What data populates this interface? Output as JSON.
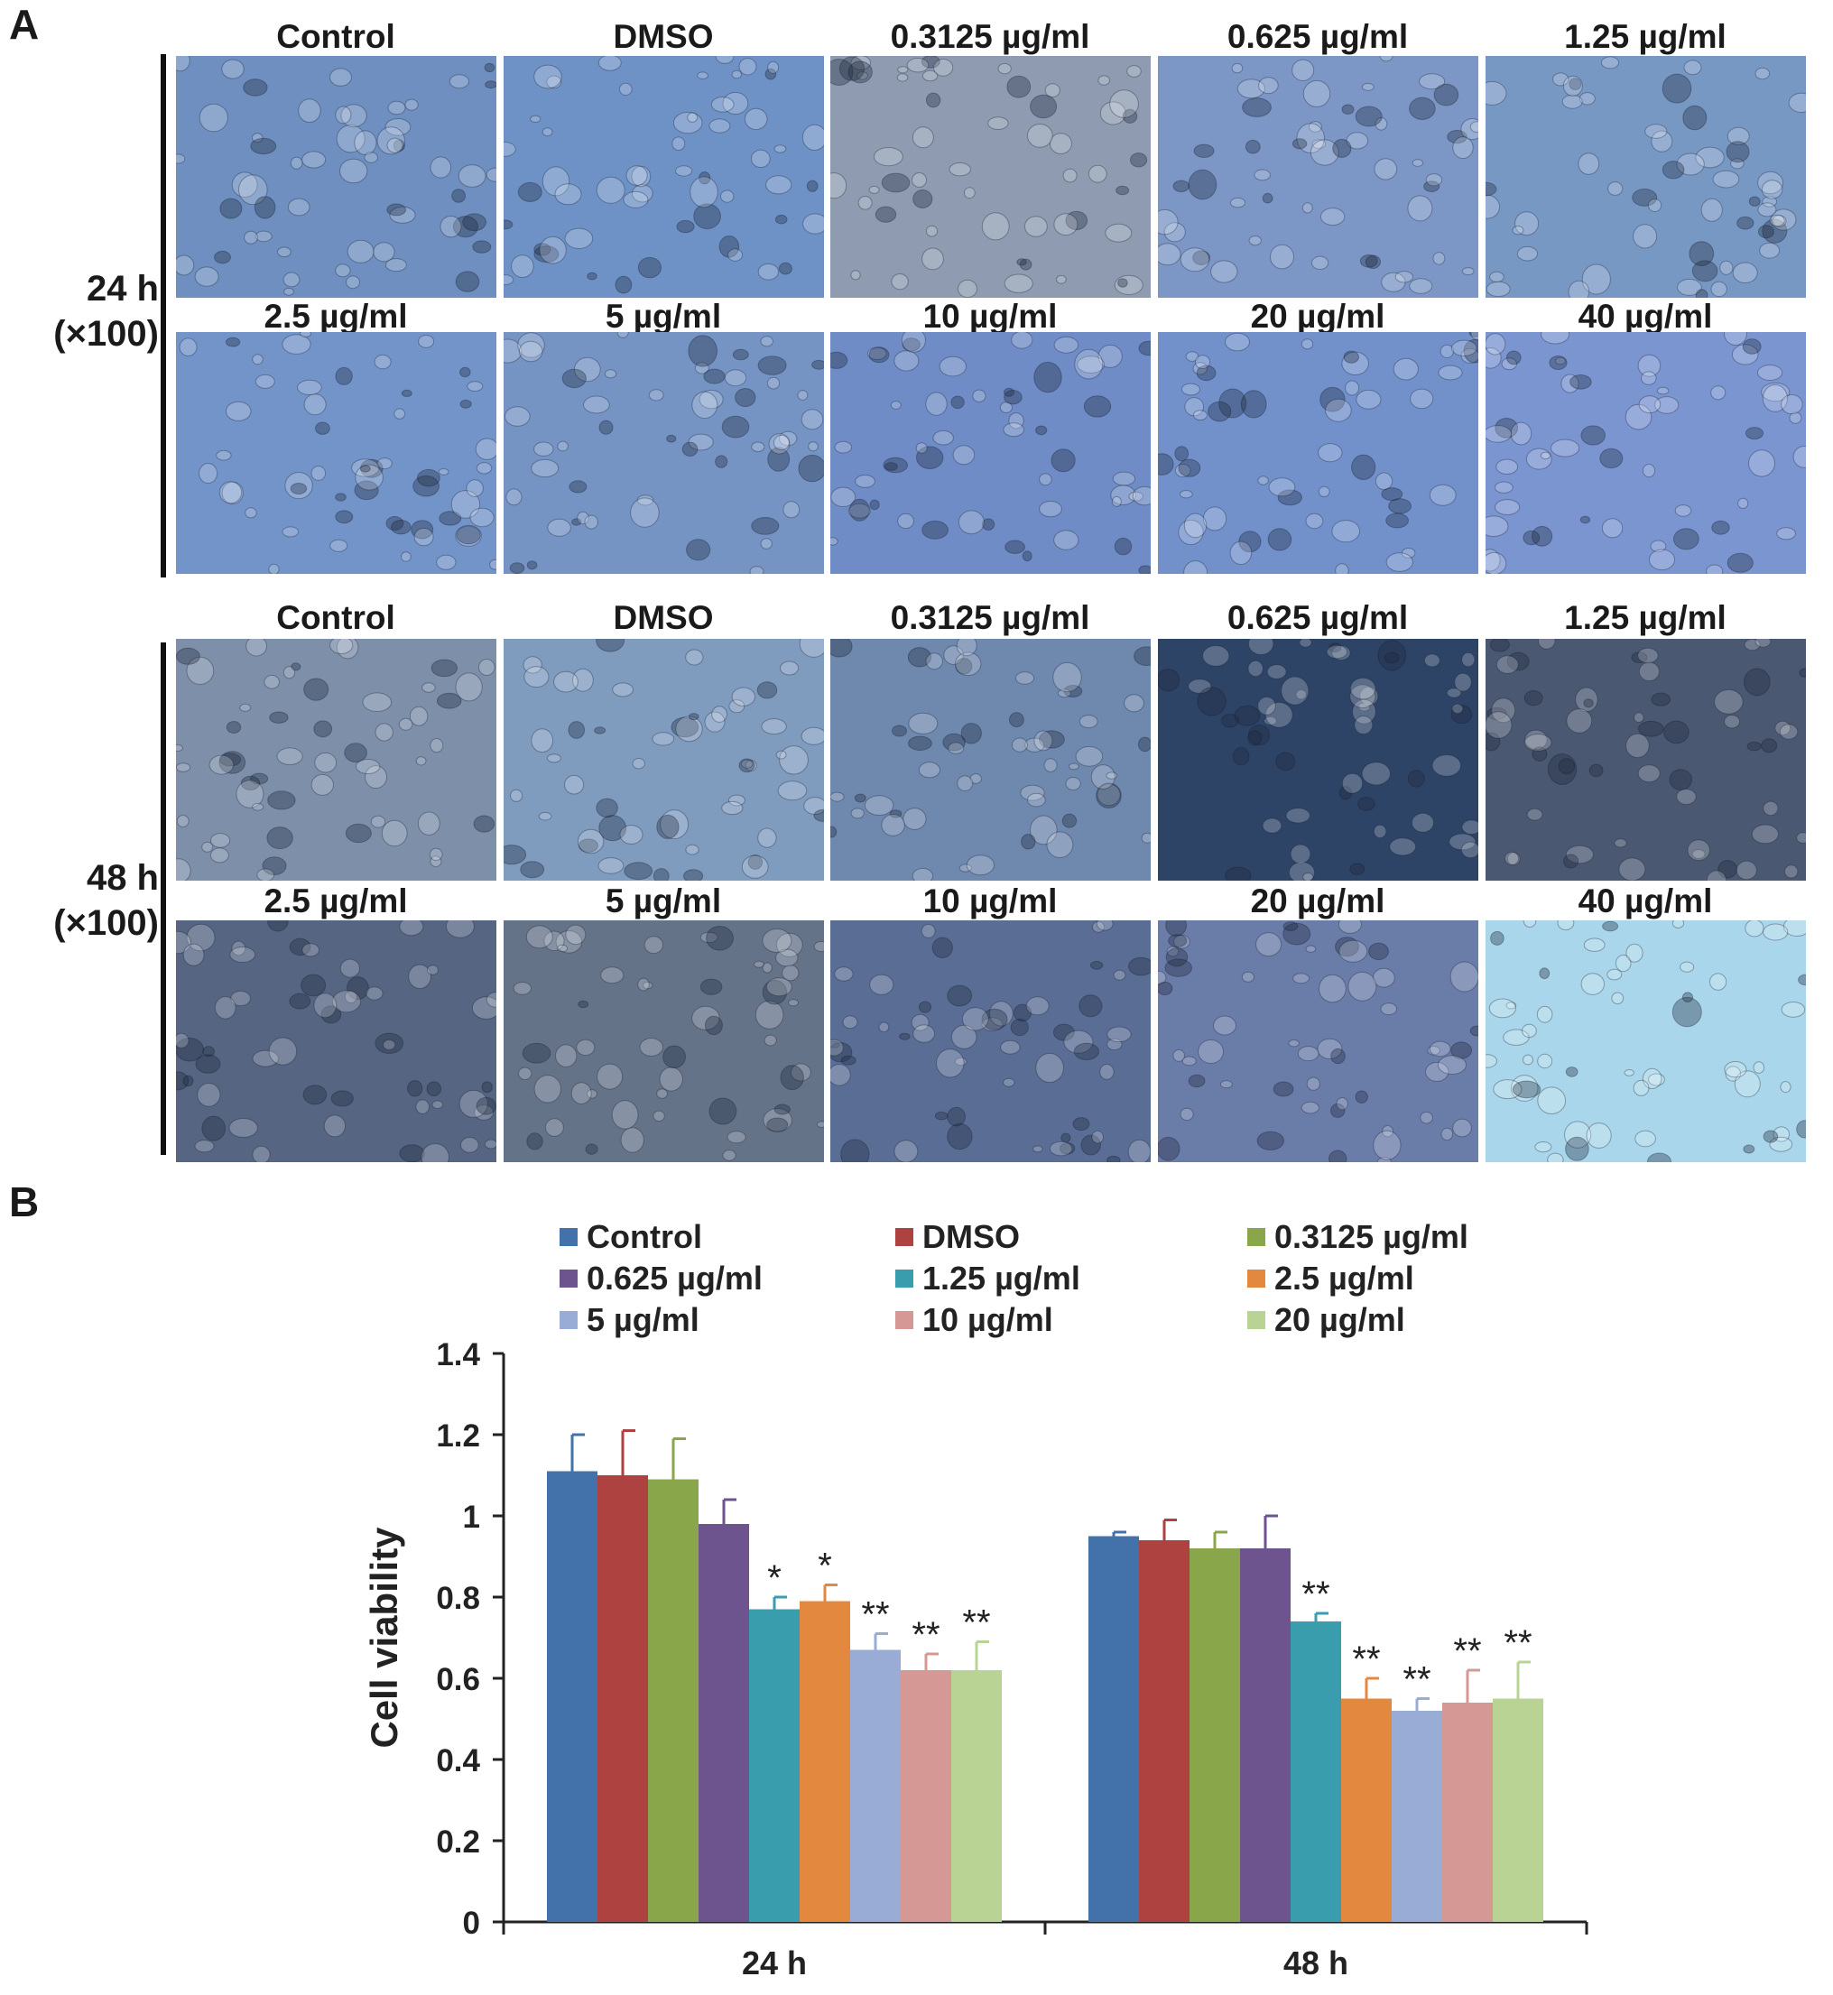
{
  "panels": {
    "a": "A",
    "b": "B"
  },
  "micrographs": {
    "groups": [
      {
        "time_label": "24 h",
        "mag_label": "(×100)",
        "rows": [
          [
            "Control",
            "DMSO",
            "0.3125 µg/ml",
            "0.625 µg/ml",
            "1.25 µg/ml"
          ],
          [
            "2.5 µg/ml",
            "5 µg/ml",
            "10 µg/ml",
            "20 µg/ml",
            "40 µg/ml"
          ]
        ],
        "tones": [
          [
            "#6e8fbf",
            "#6f92c6",
            "#8e9bb1",
            "#7c97c6",
            "#7898c4"
          ],
          [
            "#7394c8",
            "#7594c4",
            "#6f8cc6",
            "#7291cb",
            "#7a95d0"
          ]
        ]
      },
      {
        "time_label": "48 h",
        "mag_label": "(×100)",
        "rows": [
          [
            "Control",
            "DMSO",
            "0.3125 µg/ml",
            "0.625 µg/ml",
            "1.25 µg/ml"
          ],
          [
            "2.5 µg/ml",
            "5 µg/ml",
            "10 µg/ml",
            "20 µg/ml",
            "40 µg/ml"
          ]
        ],
        "tones": [
          [
            "#7d8fa9",
            "#7f9cbf",
            "#6f88ae",
            "#2e4467",
            "#4a5871"
          ],
          [
            "#556582",
            "#657389",
            "#5a6d95",
            "#6a7ca8",
            "#a9d6ea"
          ]
        ]
      }
    ]
  },
  "chart_data": {
    "type": "bar",
    "title": "",
    "xlabel": "",
    "ylabel": "Cell viability",
    "ylim": [
      0,
      1.4
    ],
    "yticks": [
      "0",
      "0.2",
      "0.4",
      "0.6",
      "0.8",
      "1",
      "1.2",
      "1.4"
    ],
    "grid": false,
    "legend_position": "top",
    "categories": [
      "24 h",
      "48 h"
    ],
    "series": [
      {
        "name": "Control",
        "color": "#4372aa",
        "values": [
          1.11,
          0.95
        ],
        "errors": [
          0.09,
          0.01
        ],
        "sig": [
          "",
          ""
        ]
      },
      {
        "name": "DMSO",
        "color": "#ad4240",
        "values": [
          1.1,
          0.94
        ],
        "errors": [
          0.11,
          0.05
        ],
        "sig": [
          "",
          ""
        ]
      },
      {
        "name": "0.3125 µg/ml",
        "color": "#8aa64b",
        "values": [
          1.09,
          0.92
        ],
        "errors": [
          0.1,
          0.04
        ],
        "sig": [
          "",
          ""
        ]
      },
      {
        "name": "0.625 µg/ml",
        "color": "#6e548f",
        "values": [
          0.98,
          0.92
        ],
        "errors": [
          0.06,
          0.08
        ],
        "sig": [
          "",
          ""
        ]
      },
      {
        "name": "1.25 µg/ml",
        "color": "#3a9dad",
        "values": [
          0.77,
          0.74
        ],
        "errors": [
          0.03,
          0.02
        ],
        "sig": [
          "*",
          "**"
        ]
      },
      {
        "name": "2.5 µg/ml",
        "color": "#e3893f",
        "values": [
          0.79,
          0.55
        ],
        "errors": [
          0.04,
          0.05
        ],
        "sig": [
          "*",
          "**"
        ]
      },
      {
        "name": "5 µg/ml",
        "color": "#98acd6",
        "values": [
          0.67,
          0.52
        ],
        "errors": [
          0.04,
          0.03
        ],
        "sig": [
          "**",
          "**"
        ]
      },
      {
        "name": "10 µg/ml",
        "color": "#d59894",
        "values": [
          0.62,
          0.54
        ],
        "errors": [
          0.04,
          0.08
        ],
        "sig": [
          "**",
          "**"
        ]
      },
      {
        "name": "20 µg/ml",
        "color": "#b9d395",
        "values": [
          0.62,
          0.55
        ],
        "errors": [
          0.07,
          0.09
        ],
        "sig": [
          "**",
          "**"
        ]
      }
    ]
  }
}
